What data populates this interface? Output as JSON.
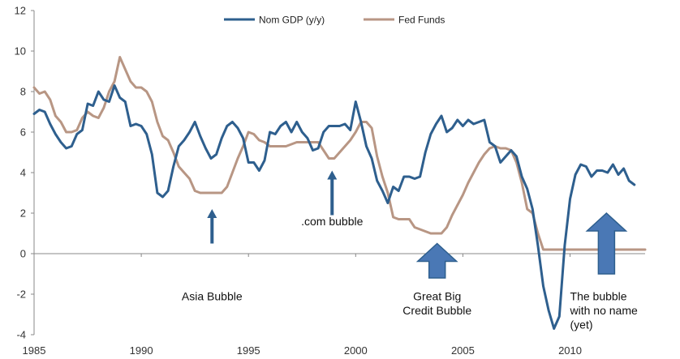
{
  "chart_data": {
    "type": "line",
    "title": "",
    "xlabel": "",
    "ylabel": "",
    "xlim": [
      1985,
      2013.5
    ],
    "ylim": [
      -4,
      12
    ],
    "x_ticks": [
      "1985",
      "1990",
      "1995",
      "2000",
      "2005",
      "2010"
    ],
    "y_ticks": [
      "-4",
      "-2",
      "0",
      "2",
      "4",
      "6",
      "8",
      "10",
      "12"
    ],
    "grid": false,
    "legend_position": "top-center",
    "colors": {
      "nom_gdp": "#2e5f8e",
      "fed_funds": "#b89684",
      "annotation_arrow": "#4a78b5",
      "annotation_arrow_edge": "#2e5f8e"
    },
    "series": [
      {
        "name": "Nom GDP (y/y)",
        "x": [
          1985.0,
          1985.25,
          1985.5,
          1985.75,
          1986.0,
          1986.25,
          1986.5,
          1986.75,
          1987.0,
          1987.25,
          1987.5,
          1987.75,
          1988.0,
          1988.25,
          1988.5,
          1988.75,
          1989.0,
          1989.25,
          1989.5,
          1989.75,
          1990.0,
          1990.25,
          1990.5,
          1990.75,
          1991.0,
          1991.25,
          1991.5,
          1991.75,
          1992.0,
          1992.25,
          1992.5,
          1992.75,
          1993.0,
          1993.25,
          1993.5,
          1993.75,
          1994.0,
          1994.25,
          1994.5,
          1994.75,
          1995.0,
          1995.25,
          1995.5,
          1995.75,
          1996.0,
          1996.25,
          1996.5,
          1996.75,
          1997.0,
          1997.25,
          1997.5,
          1997.75,
          1998.0,
          1998.25,
          1998.5,
          1998.75,
          1999.0,
          1999.25,
          1999.5,
          1999.75,
          2000.0,
          2000.25,
          2000.5,
          2000.75,
          2001.0,
          2001.25,
          2001.5,
          2001.75,
          2002.0,
          2002.25,
          2002.5,
          2002.75,
          2003.0,
          2003.25,
          2003.5,
          2003.75,
          2004.0,
          2004.25,
          2004.5,
          2004.75,
          2005.0,
          2005.25,
          2005.5,
          2005.75,
          2006.0,
          2006.25,
          2006.5,
          2006.75,
          2007.0,
          2007.25,
          2007.5,
          2007.75,
          2008.0,
          2008.25,
          2008.5,
          2008.75,
          2009.0,
          2009.25,
          2009.5,
          2009.75,
          2010.0,
          2010.25,
          2010.5,
          2010.75,
          2011.0,
          2011.25,
          2011.5,
          2011.75,
          2012.0,
          2012.25,
          2012.5,
          2012.75,
          2013.0
        ],
        "values": [
          6.9,
          7.1,
          7.0,
          6.4,
          5.9,
          5.5,
          5.2,
          5.3,
          5.9,
          6.1,
          7.4,
          7.3,
          8.0,
          7.6,
          7.5,
          8.3,
          7.7,
          7.5,
          6.3,
          6.4,
          6.3,
          5.9,
          4.9,
          3.0,
          2.8,
          3.1,
          4.3,
          5.3,
          5.6,
          6.0,
          6.5,
          5.8,
          5.2,
          4.7,
          4.9,
          5.7,
          6.3,
          6.5,
          6.2,
          5.7,
          4.5,
          4.5,
          4.1,
          4.6,
          6.0,
          5.9,
          6.3,
          6.5,
          6.0,
          6.5,
          6.0,
          5.7,
          5.1,
          5.2,
          6.0,
          6.3,
          6.3,
          6.3,
          6.4,
          6.1,
          7.5,
          6.5,
          5.3,
          4.7,
          3.6,
          3.1,
          2.5,
          3.3,
          3.1,
          3.8,
          3.8,
          3.7,
          3.8,
          5.0,
          5.9,
          6.4,
          6.8,
          6.0,
          6.2,
          6.6,
          6.3,
          6.6,
          6.4,
          6.5,
          6.6,
          5.5,
          5.3,
          4.5,
          4.8,
          5.1,
          4.8,
          3.8,
          3.2,
          2.2,
          0.4,
          -1.6,
          -2.8,
          -3.7,
          -3.1,
          0.4,
          2.7,
          3.9,
          4.4,
          4.3,
          3.8,
          4.1,
          4.1,
          4.0,
          4.4,
          3.9,
          4.2,
          3.6,
          3.4
        ]
      },
      {
        "name": "Fed Funds",
        "x": [
          1985.0,
          1985.25,
          1985.5,
          1985.75,
          1986.0,
          1986.25,
          1986.5,
          1986.75,
          1987.0,
          1987.25,
          1987.5,
          1987.75,
          1988.0,
          1988.25,
          1988.5,
          1988.75,
          1989.0,
          1989.25,
          1989.5,
          1989.75,
          1990.0,
          1990.25,
          1990.5,
          1990.75,
          1991.0,
          1991.25,
          1991.5,
          1991.75,
          1992.0,
          1992.25,
          1992.5,
          1992.75,
          1993.0,
          1993.25,
          1993.5,
          1993.75,
          1994.0,
          1994.25,
          1994.5,
          1994.75,
          1995.0,
          1995.25,
          1995.5,
          1995.75,
          1996.0,
          1996.25,
          1996.5,
          1996.75,
          1997.0,
          1997.25,
          1997.5,
          1997.75,
          1998.0,
          1998.25,
          1998.5,
          1998.75,
          1999.0,
          1999.25,
          1999.5,
          1999.75,
          2000.0,
          2000.25,
          2000.5,
          2000.75,
          2001.0,
          2001.25,
          2001.5,
          2001.75,
          2002.0,
          2002.25,
          2002.5,
          2002.75,
          2003.0,
          2003.25,
          2003.5,
          2003.75,
          2004.0,
          2004.25,
          2004.5,
          2004.75,
          2005.0,
          2005.25,
          2005.5,
          2005.75,
          2006.0,
          2006.25,
          2006.5,
          2006.75,
          2007.0,
          2007.25,
          2007.5,
          2007.75,
          2008.0,
          2008.25,
          2008.5,
          2008.75,
          2009.0,
          2009.25,
          2009.5,
          2009.75,
          2010.0,
          2010.25,
          2010.5,
          2010.75,
          2011.0,
          2011.25,
          2011.5,
          2011.75,
          2012.0,
          2012.25,
          2012.5,
          2012.75,
          2013.0,
          2013.25,
          2013.5
        ],
        "values": [
          8.2,
          7.9,
          8.0,
          7.6,
          6.8,
          6.5,
          6.0,
          6.0,
          6.1,
          6.7,
          7.0,
          6.8,
          6.7,
          7.2,
          8.0,
          8.5,
          9.7,
          9.1,
          8.5,
          8.2,
          8.2,
          8.0,
          7.5,
          6.5,
          5.8,
          5.6,
          5.0,
          4.3,
          4.0,
          3.7,
          3.1,
          3.0,
          3.0,
          3.0,
          3.0,
          3.0,
          3.3,
          4.0,
          4.7,
          5.3,
          6.0,
          5.9,
          5.6,
          5.5,
          5.3,
          5.3,
          5.3,
          5.3,
          5.4,
          5.5,
          5.5,
          5.5,
          5.5,
          5.5,
          5.1,
          4.7,
          4.7,
          5.0,
          5.3,
          5.6,
          6.0,
          6.5,
          6.5,
          6.2,
          4.8,
          3.8,
          3.0,
          1.8,
          1.7,
          1.7,
          1.7,
          1.3,
          1.2,
          1.1,
          1.0,
          1.0,
          1.0,
          1.3,
          1.9,
          2.4,
          2.9,
          3.5,
          4.0,
          4.5,
          4.9,
          5.2,
          5.3,
          5.2,
          5.2,
          5.1,
          4.5,
          3.5,
          2.2,
          2.0,
          1.0,
          0.2,
          0.2,
          0.2,
          0.2,
          0.2,
          0.2,
          0.2,
          0.2,
          0.2,
          0.2,
          0.2,
          0.2,
          0.2,
          0.2,
          0.2,
          0.2,
          0.2,
          0.2,
          0.2,
          0.2
        ]
      }
    ],
    "annotations": [
      {
        "lines": [
          "Asia Bubble"
        ],
        "x": 1993.3,
        "arrow": "thin",
        "arrow_y": [
          0.5,
          2.2
        ],
        "text_y": -2.3,
        "align": "middle"
      },
      {
        "lines": [
          ".com bubble"
        ],
        "x": 1998.9,
        "arrow": "thin",
        "arrow_y": [
          1.9,
          4.1
        ],
        "text_y": 1.4,
        "align": "middle"
      },
      {
        "lines": [
          "Great Big",
          "Credit Bubble"
        ],
        "x": 2003.8,
        "arrow": "thick",
        "arrow_y": [
          -1.2,
          0.5
        ],
        "text_y": -2.3,
        "align": "middle"
      },
      {
        "lines": [
          "The bubble",
          "with no name",
          "(yet)"
        ],
        "x": 2011.7,
        "arrow": "thick",
        "arrow_y": [
          -1.0,
          2.0
        ],
        "text_y": -2.3,
        "align": "start",
        "text_x": 2010.0
      }
    ]
  }
}
